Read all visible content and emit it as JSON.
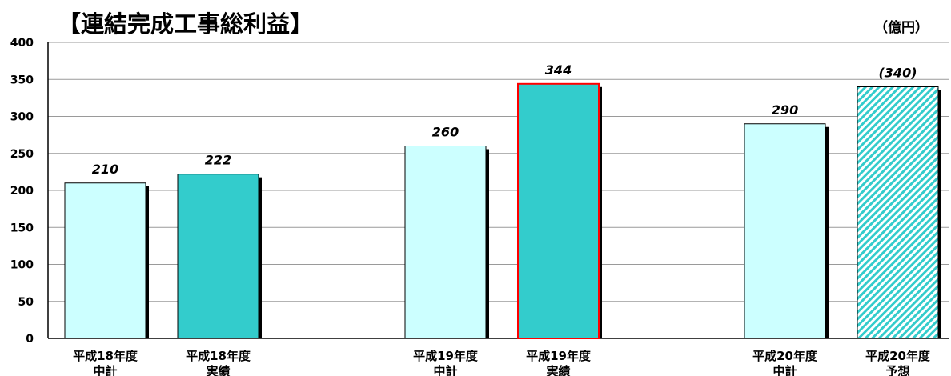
{
  "chart_data": {
    "type": "bar",
    "title": "【連結完成工事総利益】",
    "unit": "（億円）",
    "ylim": [
      0,
      400
    ],
    "yticks": [
      0,
      50,
      100,
      150,
      200,
      250,
      300,
      350,
      400
    ],
    "grid": true,
    "bars": [
      {
        "label_line1": "平成18年度",
        "label_line2": "中計",
        "value": 210,
        "value_label": "210",
        "fill": "#ccffff",
        "style": "plan"
      },
      {
        "label_line1": "平成18年度",
        "label_line2": "実績",
        "value": 222,
        "value_label": "222",
        "fill": "#33cccc",
        "style": "actual"
      },
      {
        "label_line1": "平成19年度",
        "label_line2": "中計",
        "value": 260,
        "value_label": "260",
        "fill": "#ccffff",
        "style": "plan"
      },
      {
        "label_line1": "平成19年度",
        "label_line2": "実績",
        "value": 344,
        "value_label": "344",
        "fill": "#33cccc",
        "style": "actual-highlight",
        "border": "#ff0000"
      },
      {
        "label_line1": "平成20年度",
        "label_line2": "中計",
        "value": 290,
        "value_label": "290",
        "fill": "#ccffff",
        "style": "plan"
      },
      {
        "label_line1": "平成20年度",
        "label_line2": "予想",
        "value": 340,
        "value_label": "(340)",
        "fill": "#33cccc",
        "style": "forecast-hatched"
      }
    ]
  }
}
